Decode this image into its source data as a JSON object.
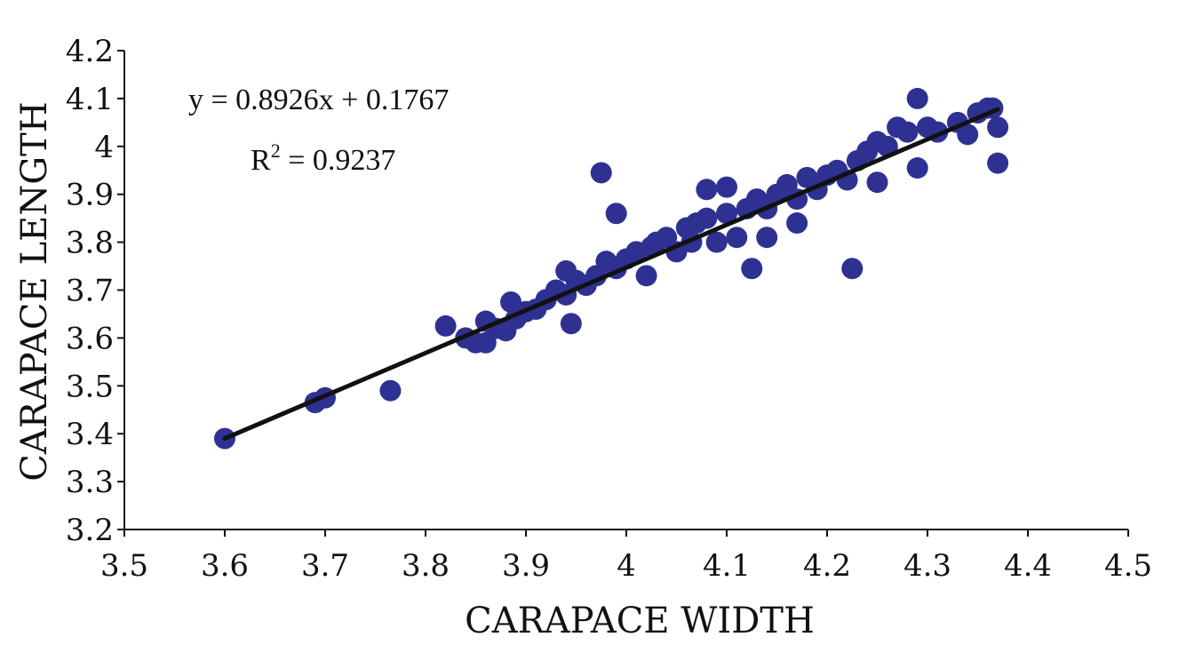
{
  "chart_data": {
    "type": "scatter",
    "title": "",
    "xlabel": "CARAPACE WIDTH",
    "ylabel": "CARAPACE LENGTH",
    "xlim": [
      3.5,
      4.5
    ],
    "ylim": [
      3.2,
      4.2
    ],
    "xticks": [
      "3.5",
      "3.6",
      "3.7",
      "3.8",
      "3.9",
      "4",
      "4.1",
      "4.2",
      "4.3",
      "4.4",
      "4.5"
    ],
    "yticks": [
      "3.2",
      "3.3",
      "3.4",
      "3.5",
      "3.6",
      "3.7",
      "3.8",
      "3.9",
      "4",
      "4.1",
      "4.2"
    ],
    "grid": false,
    "legend": "none",
    "point_color": "#2e3192",
    "line_color": "#111111",
    "trendline": {
      "slope": 0.8926,
      "intercept": 0.1767,
      "x_range": [
        3.6,
        4.37
      ]
    },
    "annotations": {
      "equation": "y = 0.8926x + 0.1767",
      "r2_prefix": "R",
      "r2_exponent": "2",
      "r2_value": " = 0.9237"
    },
    "series": [
      {
        "x": [
          3.6,
          3.69,
          3.7,
          3.765,
          3.82,
          3.84,
          3.85,
          3.86,
          3.86,
          3.87,
          3.88,
          3.885,
          3.89,
          3.9,
          3.91,
          3.92,
          3.93,
          3.94,
          3.94,
          3.945,
          3.95,
          3.96,
          3.97,
          3.975,
          3.98,
          3.99,
          3.99,
          4.0,
          4.01,
          4.02,
          4.025,
          4.03,
          4.04,
          4.05,
          4.06,
          4.065,
          4.07,
          4.08,
          4.08,
          4.09,
          4.1,
          4.1,
          4.11,
          4.12,
          4.125,
          4.13,
          4.14,
          4.14,
          4.15,
          4.16,
          4.17,
          4.17,
          4.18,
          4.19,
          4.2,
          4.21,
          4.22,
          4.225,
          4.23,
          4.24,
          4.25,
          4.25,
          4.26,
          4.27,
          4.28,
          4.29,
          4.29,
          4.3,
          4.31,
          4.33,
          4.34,
          4.35,
          4.36,
          4.365,
          4.37,
          4.37
        ],
        "y": [
          3.39,
          3.465,
          3.475,
          3.49,
          3.625,
          3.6,
          3.59,
          3.635,
          3.59,
          3.62,
          3.615,
          3.675,
          3.64,
          3.655,
          3.66,
          3.68,
          3.7,
          3.69,
          3.74,
          3.63,
          3.72,
          3.71,
          3.73,
          3.945,
          3.76,
          3.86,
          3.745,
          3.765,
          3.78,
          3.73,
          3.79,
          3.8,
          3.81,
          3.78,
          3.83,
          3.8,
          3.84,
          3.91,
          3.85,
          3.8,
          3.86,
          3.915,
          3.81,
          3.87,
          3.745,
          3.89,
          3.81,
          3.87,
          3.9,
          3.92,
          3.89,
          3.84,
          3.935,
          3.91,
          3.94,
          3.95,
          3.93,
          3.745,
          3.97,
          3.99,
          4.01,
          3.925,
          4.0,
          4.04,
          4.03,
          4.1,
          3.955,
          4.04,
          4.03,
          4.05,
          4.025,
          4.07,
          4.08,
          4.08,
          3.965,
          4.04
        ]
      }
    ]
  }
}
